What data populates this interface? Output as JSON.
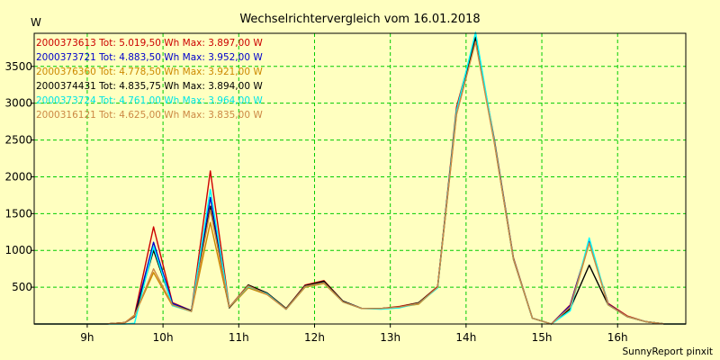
{
  "chart_data": {
    "type": "line",
    "title": "Wechselrichtervergleich vom 16.01.2018",
    "ylabel": "W",
    "xlabel": "",
    "ylim": [
      0,
      3950
    ],
    "xlim": [
      8.3,
      16.9
    ],
    "grid": true,
    "yticks": [
      500,
      1000,
      1500,
      2000,
      2500,
      3000,
      3500
    ],
    "yticklabels": [
      "500",
      "1000",
      "1500",
      "2000",
      "2500",
      "3000",
      "3500"
    ],
    "xticks": [
      9,
      10,
      11,
      12,
      13,
      14,
      15,
      16
    ],
    "xticklabels": [
      "9h",
      "10h",
      "11h",
      "12h",
      "13h",
      "14h",
      "15h",
      "16h"
    ],
    "x": [
      8.3,
      8.5,
      8.75,
      9.0,
      9.25,
      9.5,
      9.625,
      9.875,
      10.125,
      10.375,
      10.625,
      10.875,
      11.125,
      11.375,
      11.625,
      11.875,
      12.125,
      12.375,
      12.625,
      12.875,
      13.125,
      13.375,
      13.625,
      13.875,
      14.125,
      14.375,
      14.625,
      14.875,
      15.125,
      15.375,
      15.625,
      15.875,
      16.125,
      16.375,
      16.625,
      16.9
    ],
    "series": [
      {
        "name": "2000373613",
        "color": "#cc0000",
        "values": [
          0,
          0,
          0,
          0,
          0,
          20,
          120,
          1320,
          290,
          180,
          2080,
          230,
          530,
          420,
          210,
          530,
          590,
          310,
          210,
          210,
          240,
          290,
          510,
          2950,
          3897,
          2500,
          900,
          80,
          0,
          260,
          1110,
          280,
          110,
          30,
          0,
          0
        ]
      },
      {
        "name": "2000373721",
        "color": "#0000cc",
        "values": [
          0,
          0,
          0,
          0,
          0,
          20,
          100,
          1110,
          280,
          180,
          1720,
          230,
          520,
          410,
          200,
          520,
          570,
          310,
          210,
          210,
          230,
          280,
          500,
          2900,
          3852,
          2480,
          890,
          80,
          0,
          250,
          1120,
          270,
          100,
          30,
          0,
          0
        ]
      },
      {
        "name": "2000376360",
        "color": "#cc8800",
        "values": [
          0,
          0,
          0,
          0,
          0,
          20,
          120,
          700,
          250,
          170,
          1380,
          220,
          490,
          400,
          200,
          500,
          550,
          300,
          210,
          210,
          230,
          270,
          500,
          2850,
          3851,
          2460,
          880,
          80,
          0,
          200,
          1100,
          260,
          100,
          30,
          0,
          0
        ]
      },
      {
        "name": "2000374431",
        "color": "#000000",
        "values": [
          0,
          0,
          0,
          0,
          0,
          20,
          100,
          1000,
          260,
          180,
          1600,
          220,
          530,
          420,
          210,
          520,
          580,
          310,
          210,
          210,
          230,
          290,
          500,
          2900,
          3894,
          2470,
          880,
          80,
          0,
          210,
          800,
          260,
          100,
          30,
          0,
          0
        ]
      },
      {
        "name": "2000373724",
        "color": "#00ffff",
        "values": [
          0,
          0,
          0,
          0,
          0,
          0,
          10,
          1050,
          250,
          170,
          1830,
          230,
          510,
          410,
          200,
          510,
          560,
          300,
          210,
          200,
          220,
          280,
          490,
          2900,
          3964,
          2470,
          880,
          80,
          0,
          180,
          1170,
          260,
          100,
          30,
          0,
          0
        ]
      },
      {
        "name": "2000316121",
        "color": "#cc8844",
        "values": [
          0,
          0,
          0,
          0,
          0,
          20,
          110,
          750,
          260,
          170,
          1550,
          230,
          520,
          400,
          200,
          510,
          560,
          300,
          210,
          210,
          230,
          280,
          500,
          2850,
          3835,
          2450,
          880,
          80,
          0,
          230,
          1100,
          260,
          100,
          30,
          0,
          0
        ]
      }
    ],
    "legend": [
      {
        "id": "2000373613",
        "text": "Tot: 5.019,50 Wh Max: 3.897,00 W",
        "color": "#cc0000"
      },
      {
        "id": "2000373721",
        "text": "Tot: 4.883,50 Wh Max: 3.952,00 W",
        "color": "#0000cc"
      },
      {
        "id": "2000376360",
        "text": "Tot: 4.778,50 Wh Max: 3.921,00 W",
        "color": "#cc8800"
      },
      {
        "id": "2000374431",
        "text": "Tot: 4.835,75 Wh Max: 3.894,00 W",
        "color": "#000000"
      },
      {
        "id": "2000373724",
        "text": "Tot: 4.761,00 Wh Max: 3.964,00 W",
        "color": "#00e5e5"
      },
      {
        "id": "2000316121",
        "text": "Tot: 4.625,00 Wh Max: 3.835,00 W",
        "color": "#cc8844"
      }
    ],
    "legend_position": "top-left",
    "footer": "SunnyReport pinxit"
  },
  "colors": {
    "background": "#ffffc0",
    "grid": "#00cc00",
    "axis": "#000000"
  }
}
